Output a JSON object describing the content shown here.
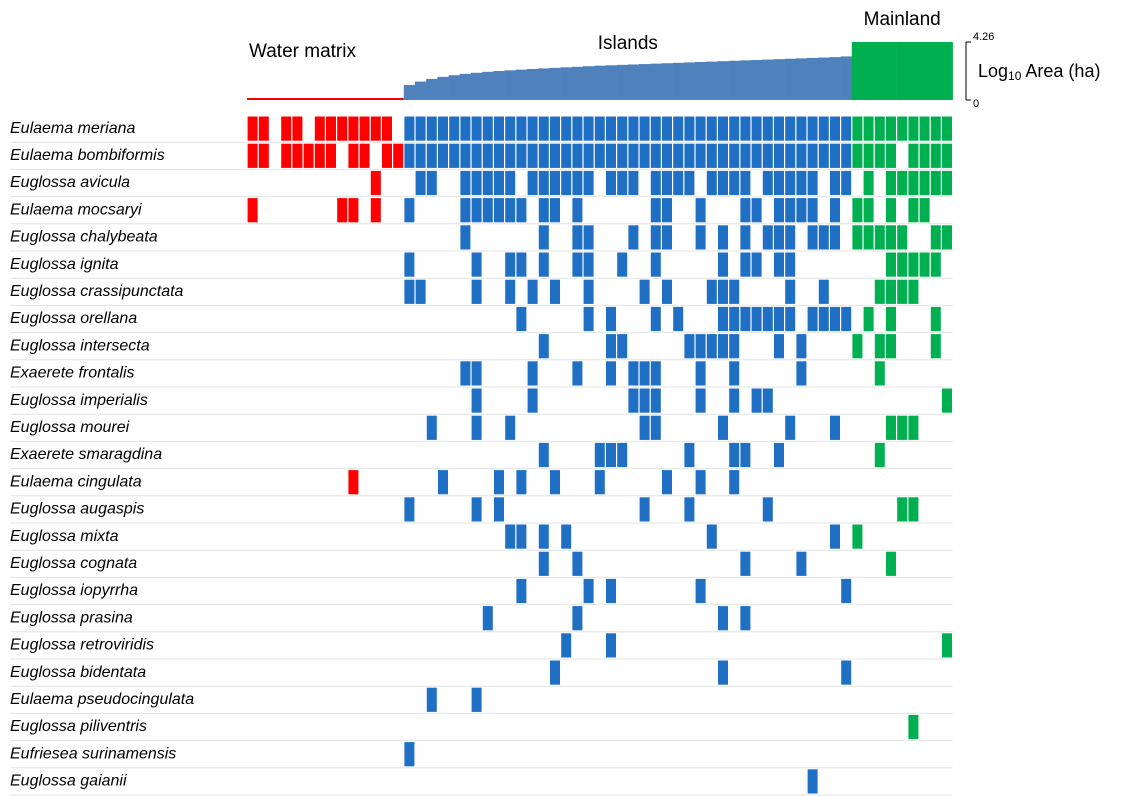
{
  "chart_data": {
    "type": "matrix",
    "ylabel": [
      "Log",
      "10",
      " Area (ha)"
    ],
    "ylim": [
      0,
      4.26
    ],
    "yticks": [
      0,
      4.26
    ],
    "groups": [
      {
        "name": "Water matrix",
        "color": "#ff0000",
        "area_color": "#ff0000",
        "area": [
          0,
          0,
          0,
          0,
          0,
          0,
          0,
          0,
          0,
          0,
          0,
          0,
          0,
          0
        ]
      },
      {
        "name": "Islands",
        "color": "#1f6fc5",
        "area_color": "#4f81bd",
        "area": [
          1.1,
          1.35,
          1.55,
          1.7,
          1.82,
          1.92,
          2.0,
          2.07,
          2.13,
          2.18,
          2.23,
          2.28,
          2.32,
          2.36,
          2.4,
          2.44,
          2.48,
          2.52,
          2.55,
          2.58,
          2.61,
          2.64,
          2.67,
          2.7,
          2.73,
          2.76,
          2.79,
          2.82,
          2.85,
          2.88,
          2.91,
          2.94,
          2.97,
          3.0,
          3.03,
          3.06,
          3.09,
          3.12,
          3.15,
          3.2
        ]
      },
      {
        "name": "Mainland",
        "color": "#00b050",
        "area_color": "#00b050",
        "area": [
          4.26,
          4.26,
          4.26,
          4.26,
          4.26,
          4.26,
          4.26,
          4.26,
          4.26
        ]
      }
    ],
    "rows": [
      {
        "name": "Eulaema meriana",
        "present": [
          0,
          1,
          3,
          4,
          6,
          7,
          8,
          9,
          10,
          11,
          12,
          14,
          15,
          16,
          17,
          18,
          19,
          20,
          21,
          22,
          23,
          24,
          25,
          26,
          27,
          28,
          29,
          30,
          31,
          32,
          33,
          34,
          35,
          36,
          37,
          38,
          39,
          40,
          41,
          42,
          43,
          44,
          45,
          46,
          47,
          48,
          49,
          50,
          51,
          52,
          53,
          54,
          55,
          56,
          57,
          58,
          59,
          60,
          61,
          62
        ]
      },
      {
        "name": "Eulaema bombiformis",
        "present": [
          0,
          1,
          3,
          4,
          5,
          6,
          7,
          9,
          10,
          12,
          13,
          14,
          15,
          16,
          17,
          18,
          19,
          20,
          21,
          22,
          23,
          24,
          25,
          26,
          27,
          28,
          29,
          30,
          31,
          32,
          33,
          34,
          35,
          36,
          37,
          38,
          39,
          40,
          41,
          42,
          43,
          44,
          45,
          46,
          47,
          48,
          49,
          50,
          51,
          52,
          53,
          54,
          55,
          56,
          57,
          59,
          60,
          61,
          62
        ]
      },
      {
        "name": "Euglossa avicula",
        "present": [
          11,
          15,
          16,
          19,
          20,
          21,
          22,
          23,
          25,
          26,
          27,
          28,
          29,
          30,
          32,
          33,
          34,
          36,
          37,
          38,
          39,
          41,
          42,
          43,
          44,
          46,
          47,
          48,
          49,
          50,
          52,
          53,
          55,
          57,
          58,
          59,
          60,
          61,
          62
        ]
      },
      {
        "name": "Eulaema mocsaryi",
        "present": [
          0,
          8,
          9,
          11,
          14,
          19,
          20,
          21,
          22,
          23,
          24,
          26,
          27,
          29,
          36,
          37,
          40,
          44,
          45,
          47,
          48,
          49,
          50,
          52,
          54,
          55,
          57,
          59,
          60
        ]
      },
      {
        "name": "Euglossa chalybeata",
        "present": [
          19,
          26,
          29,
          30,
          34,
          36,
          37,
          40,
          42,
          44,
          46,
          47,
          48,
          50,
          51,
          52,
          54,
          55,
          56,
          57,
          58,
          61,
          62
        ]
      },
      {
        "name": "Euglossa ignita",
        "present": [
          14,
          20,
          23,
          24,
          26,
          29,
          30,
          33,
          36,
          42,
          44,
          45,
          47,
          48,
          57,
          58,
          59,
          60,
          61
        ]
      },
      {
        "name": "Euglossa crassipunctata",
        "present": [
          14,
          15,
          20,
          23,
          25,
          27,
          30,
          35,
          37,
          41,
          42,
          43,
          48,
          51,
          56,
          57,
          58,
          59
        ]
      },
      {
        "name": "Euglossa orellana",
        "present": [
          24,
          30,
          32,
          36,
          38,
          42,
          43,
          44,
          45,
          46,
          47,
          48,
          50,
          51,
          52,
          53,
          55,
          57,
          61
        ]
      },
      {
        "name": "Euglossa intersecta",
        "present": [
          26,
          32,
          33,
          39,
          40,
          41,
          42,
          43,
          47,
          49,
          54,
          56,
          57,
          61
        ]
      },
      {
        "name": "Exaerete frontalis",
        "present": [
          19,
          20,
          25,
          29,
          32,
          34,
          35,
          36,
          40,
          43,
          49,
          56
        ]
      },
      {
        "name": "Euglossa imperialis",
        "present": [
          20,
          25,
          34,
          35,
          36,
          40,
          43,
          45,
          46,
          62
        ]
      },
      {
        "name": "Euglossa mourei",
        "present": [
          16,
          20,
          23,
          35,
          36,
          42,
          48,
          52,
          57,
          58,
          59
        ]
      },
      {
        "name": "Exaerete smaragdina",
        "present": [
          26,
          31,
          32,
          33,
          39,
          43,
          44,
          47,
          56
        ]
      },
      {
        "name": "Eulaema cingulata",
        "present": [
          9,
          17,
          22,
          24,
          27,
          31,
          37,
          40,
          43
        ]
      },
      {
        "name": "Euglossa augaspis",
        "present": [
          14,
          20,
          22,
          35,
          39,
          46,
          58,
          59
        ]
      },
      {
        "name": "Euglossa mixta",
        "present": [
          23,
          24,
          26,
          28,
          41,
          52,
          54
        ]
      },
      {
        "name": "Euglossa cognata",
        "present": [
          26,
          29,
          44,
          49,
          57
        ]
      },
      {
        "name": "Euglossa iopyrrha",
        "present": [
          24,
          30,
          32,
          40,
          53
        ]
      },
      {
        "name": "Euglossa prasina",
        "present": [
          21,
          29,
          42,
          44
        ]
      },
      {
        "name": "Euglossa retroviridis",
        "present": [
          28,
          32,
          62
        ]
      },
      {
        "name": "Euglossa bidentata",
        "present": [
          27,
          42,
          53
        ]
      },
      {
        "name": "Eulaema pseudocingulata",
        "present": [
          16,
          20
        ]
      },
      {
        "name": "Euglossa piliventris",
        "present": [
          59
        ]
      },
      {
        "name": "Eufriesea surinamensis",
        "present": [
          14
        ]
      },
      {
        "name": "Euglossa gaianii",
        "present": [
          50
        ]
      }
    ]
  }
}
